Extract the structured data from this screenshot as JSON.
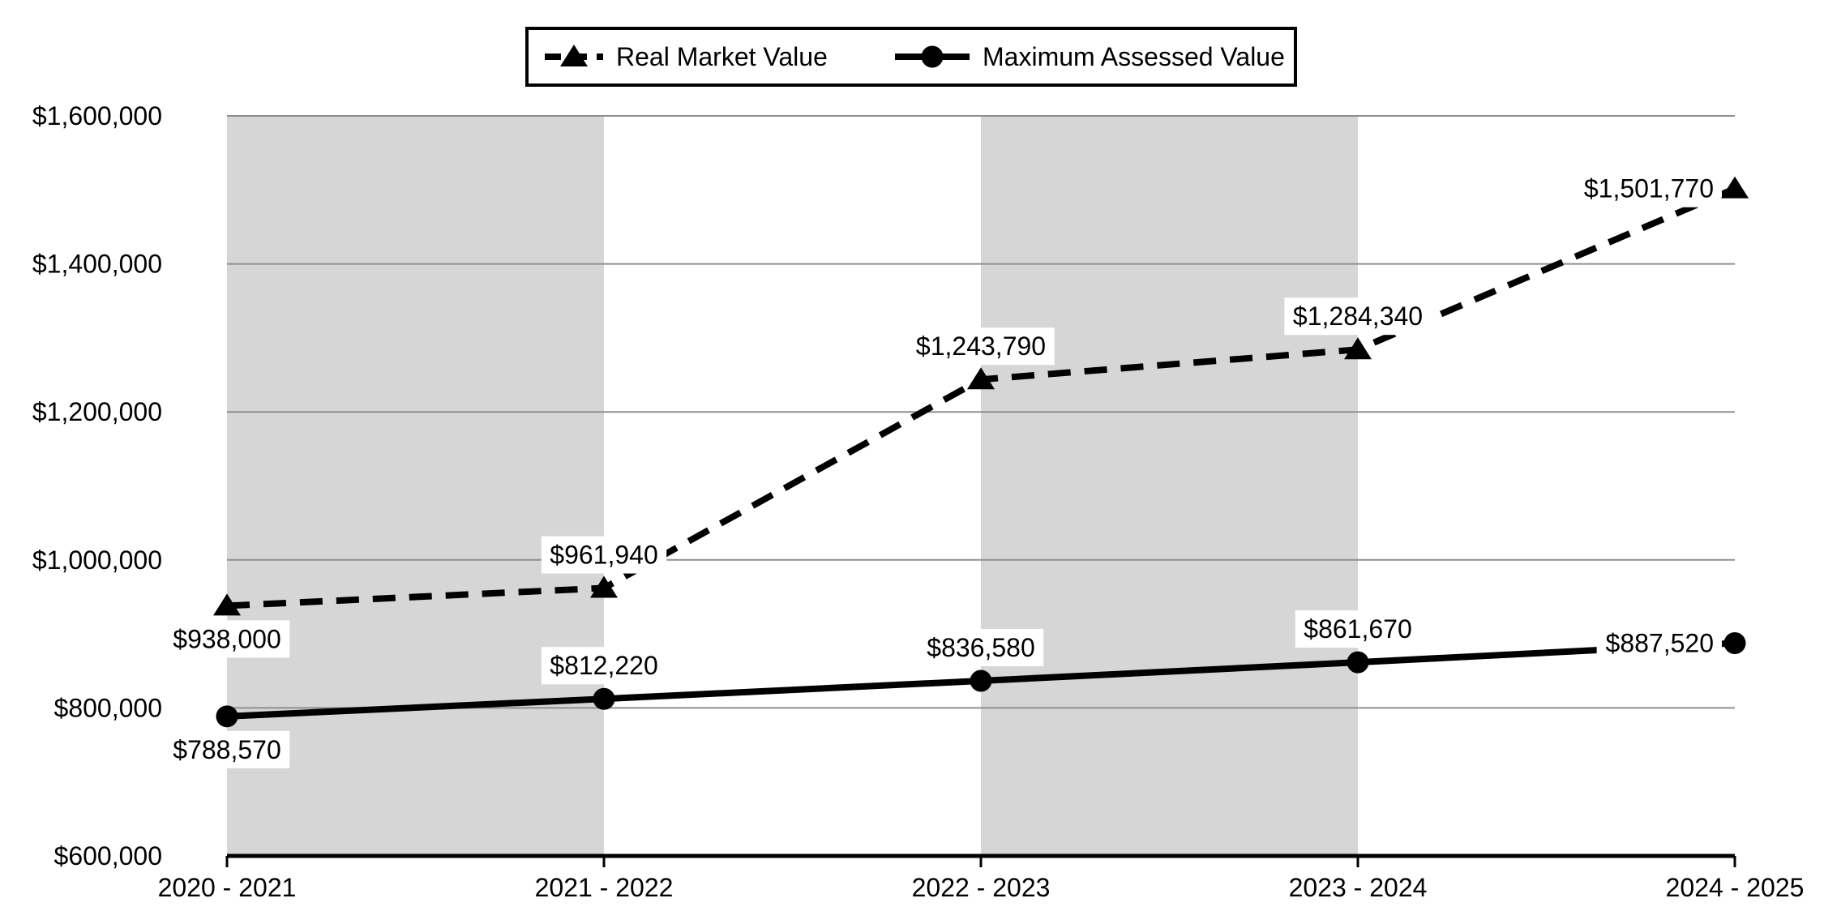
{
  "chart_data": {
    "type": "line",
    "title": "",
    "categories": [
      "2020 - 2021",
      "2021 - 2022",
      "2022 - 2023",
      "2023 - 2024",
      "2024 - 2025"
    ],
    "series": [
      {
        "name": "Real Market Value",
        "line_style": "dashed",
        "marker": "triangle",
        "color": "#000000",
        "values": [
          938000,
          961940,
          1243790,
          1284340,
          1501770
        ],
        "data_labels": [
          "$938,000",
          "$961,940",
          "$1,243,790",
          "$1,284,340",
          "$1,501,770"
        ],
        "label_placement": [
          "below",
          "above",
          "above",
          "above",
          "left"
        ]
      },
      {
        "name": "Maximum Assessed Value",
        "line_style": "solid",
        "marker": "circle",
        "color": "#000000",
        "values": [
          788570,
          812220,
          836580,
          861670,
          887520
        ],
        "data_labels": [
          "$788,570",
          "$812,220",
          "$836,580",
          "$861,670",
          "$887,520"
        ],
        "label_placement": [
          "below",
          "above",
          "above",
          "above",
          "left"
        ]
      }
    ],
    "y_axis": {
      "min": 600000,
      "max": 1600000,
      "step": 200000,
      "tick_labels": [
        "$600,000",
        "$800,000",
        "$1,000,000",
        "$1,200,000",
        "$1,400,000",
        "$1,600,000"
      ]
    },
    "x_axis": {
      "tick_labels": [
        "2020 - 2021",
        "2021 - 2022",
        "2022 - 2023",
        "2023 - 2024",
        "2024 - 2025"
      ]
    },
    "legend": {
      "position": "top",
      "entries": [
        "Real Market Value",
        "Maximum Assessed Value"
      ]
    },
    "plot_bands": {
      "spans": [
        [
          0,
          1
        ],
        [
          2,
          3
        ]
      ]
    },
    "grid": true,
    "colors": {
      "series": "#000000",
      "gridline": "#8f8f8f",
      "band": "#d6d6d6",
      "axis": "#000000",
      "label_background": "#ffffff",
      "background": "#ffffff"
    }
  }
}
